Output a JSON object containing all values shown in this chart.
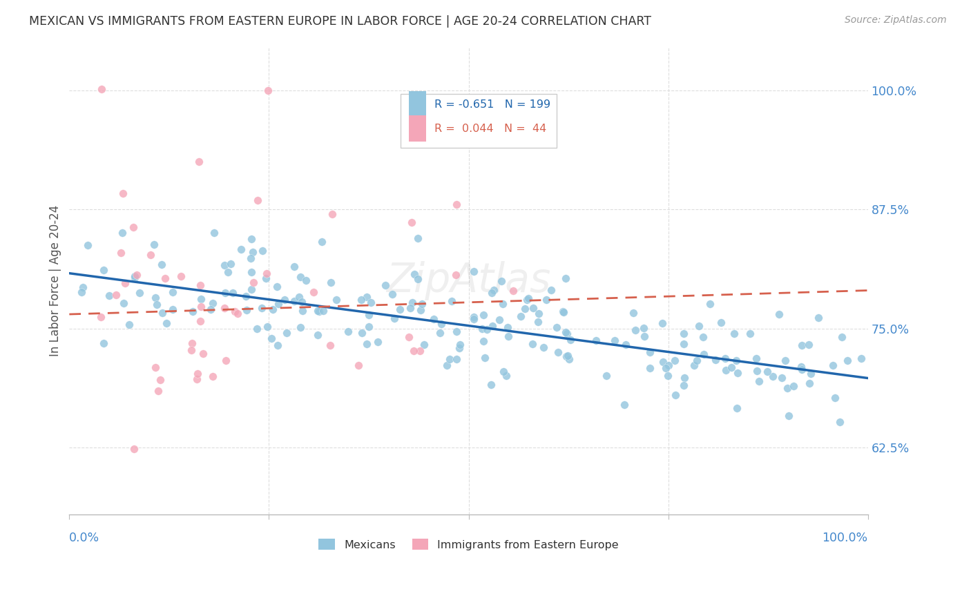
{
  "title": "MEXICAN VS IMMIGRANTS FROM EASTERN EUROPE IN LABOR FORCE | AGE 20-24 CORRELATION CHART",
  "source": "Source: ZipAtlas.com",
  "ylabel": "In Labor Force | Age 20-24",
  "blue_color": "#92c5de",
  "pink_color": "#f4a6b8",
  "blue_line_color": "#2166ac",
  "pink_line_color": "#d6604d",
  "background_color": "#ffffff",
  "grid_color": "#dddddd",
  "title_color": "#333333",
  "right_tick_color": "#4488cc",
  "watermark": "ZipAtlas",
  "blue_R": -0.651,
  "blue_N": 199,
  "pink_R": 0.044,
  "pink_N": 44,
  "ylim_low": 0.555,
  "ylim_high": 1.045,
  "xlim_low": 0.0,
  "xlim_high": 1.0,
  "ytick_vals": [
    0.625,
    0.75,
    0.875,
    1.0
  ],
  "ytick_labels": [
    "62.5%",
    "75.0%",
    "87.5%",
    "100.0%"
  ],
  "xtick_labels_show": [
    "0.0%",
    "100.0%"
  ],
  "legend_r1": "R = -0.651   N = 199",
  "legend_r2": "R =  0.044   N =  44",
  "legend_label1": "Mexicans",
  "legend_label2": "Immigrants from Eastern Europe",
  "blue_line_start_y": 0.808,
  "blue_line_end_y": 0.698,
  "pink_line_start_y": 0.765,
  "pink_line_end_y": 0.79
}
